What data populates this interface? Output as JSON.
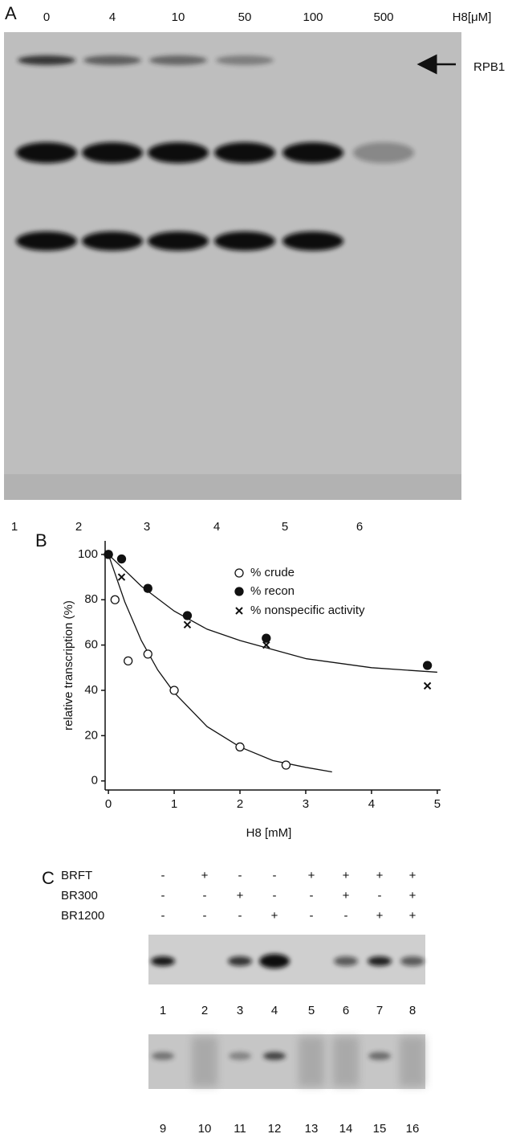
{
  "panel_a": {
    "label": "A",
    "concentrations": [
      "0",
      "4",
      "10",
      "50",
      "100",
      "500"
    ],
    "unit_label": "H8[μM]",
    "band_label": "RPB1",
    "lanes": [
      "1",
      "2",
      "3",
      "4",
      "5",
      "6"
    ]
  },
  "chart_data": {
    "type": "scatter",
    "label": "B",
    "xlabel": "H8 [mM]",
    "ylabel": "relative transcription (%)",
    "xlim": [
      -0.05,
      5.05
    ],
    "ylim": [
      -4,
      106
    ],
    "xticks": [
      0,
      1,
      2,
      3,
      4,
      5
    ],
    "yticks": [
      0,
      20,
      40,
      60,
      80,
      100
    ],
    "series": [
      {
        "name": "% crude",
        "marker": "open-circle",
        "color": "#111111",
        "x": [
          0,
          0.1,
          0.3,
          0.6,
          1.0,
          2.0,
          2.7
        ],
        "values": [
          100,
          80,
          53,
          56,
          40,
          15,
          7
        ]
      },
      {
        "name": "% recon",
        "marker": "filled-circle",
        "color": "#111111",
        "x": [
          0,
          0.2,
          0.6,
          1.2,
          2.4,
          4.85
        ],
        "values": [
          100,
          98,
          85,
          73,
          63,
          51
        ]
      },
      {
        "name": "% nonspecific activity",
        "marker": "cross",
        "color": "#111111",
        "x": [
          0,
          0.2,
          0.6,
          1.2,
          2.4,
          4.85
        ],
        "values": [
          100,
          90,
          85,
          69,
          60,
          42
        ]
      }
    ],
    "fits": [
      {
        "x": [
          0,
          0.25,
          0.5,
          0.75,
          1,
          1.5,
          2,
          2.5,
          3,
          3.4
        ],
        "values": [
          100,
          79,
          62,
          49,
          39,
          24,
          15,
          9,
          6,
          4
        ]
      },
      {
        "x": [
          0,
          0.5,
          1,
          1.5,
          2,
          3,
          4,
          5
        ],
        "values": [
          100,
          86,
          75,
          67,
          62,
          54,
          50,
          48
        ]
      }
    ]
  },
  "panel_c": {
    "label": "C",
    "rows": [
      {
        "name": "BRFT",
        "signs": [
          "-",
          "+",
          "-",
          "-",
          "+",
          "+",
          "+",
          "+"
        ]
      },
      {
        "name": "BR300",
        "signs": [
          "-",
          "-",
          "+",
          "-",
          "-",
          "+",
          "-",
          "+"
        ]
      },
      {
        "name": "BR1200",
        "signs": [
          "-",
          "-",
          "-",
          "+",
          "-",
          "-",
          "+",
          "+"
        ]
      }
    ],
    "lanes_top": [
      "1",
      "2",
      "3",
      "4",
      "5",
      "6",
      "7",
      "8"
    ],
    "lanes_bottom": [
      "9",
      "10",
      "11",
      "12",
      "13",
      "14",
      "15",
      "16"
    ]
  }
}
